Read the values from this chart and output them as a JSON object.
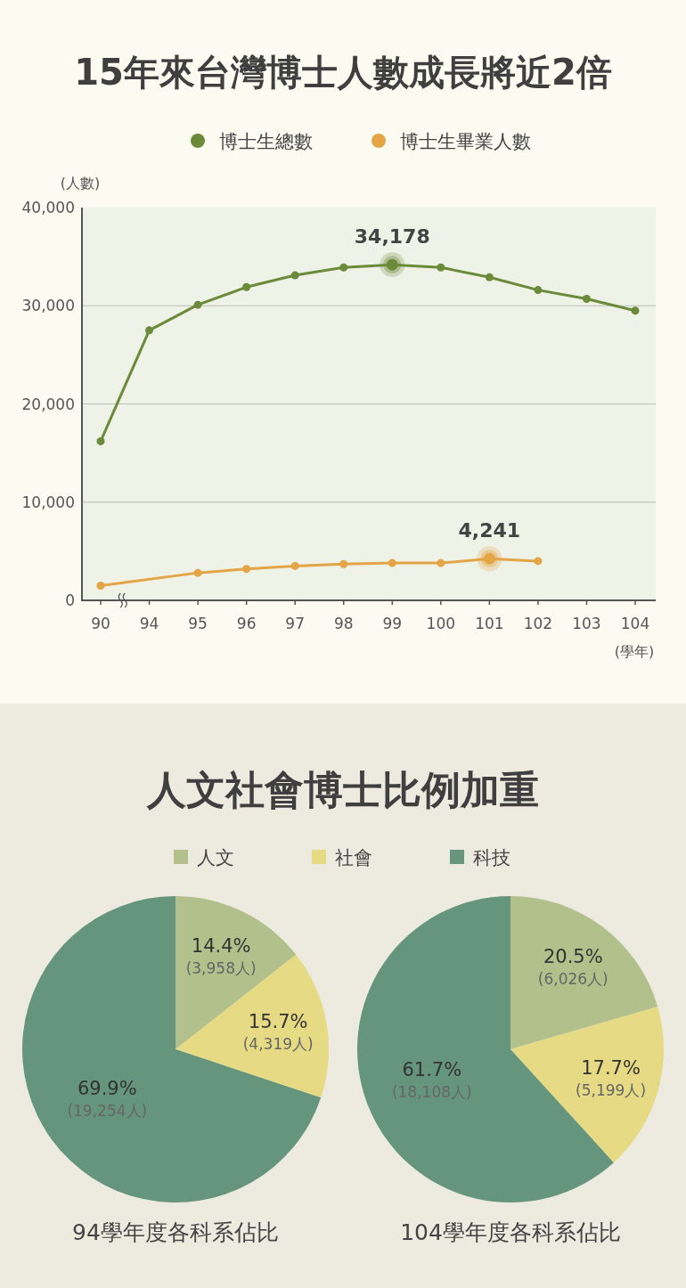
{
  "chart_data": [
    {
      "type": "line",
      "title": "15年來台灣博士人數成長將近2倍",
      "categories": [
        "90",
        "94",
        "95",
        "96",
        "97",
        "98",
        "99",
        "100",
        "101",
        "102",
        "103",
        "104"
      ],
      "series": [
        {
          "name": "博士生總數",
          "color": "#6b8b3a",
          "values": [
            16200,
            27500,
            30100,
            31900,
            33100,
            33900,
            34178,
            33900,
            32900,
            31600,
            30700,
            29500
          ]
        },
        {
          "name": "博士生畢業人數",
          "color": "#e3a545",
          "values": [
            1500,
            null,
            2800,
            3200,
            3500,
            3700,
            3800,
            3800,
            4241,
            4000,
            null,
            null
          ]
        }
      ],
      "ylabel": "(人數)",
      "xlabel": "(學年)",
      "ylim": [
        0,
        40000
      ],
      "yticks": [
        0,
        {
          "value": 10000,
          "label": "10,000"
        },
        {
          "value": 20000,
          "label": "20,000"
        },
        {
          "value": 30000,
          "label": "30,000"
        },
        {
          "value": 40000,
          "label": "40,000"
        }
      ],
      "grid": "y",
      "legend": "top",
      "marker": "circle",
      "annotations": [
        {
          "text": "34,178",
          "x": "99",
          "y": 34178
        },
        {
          "text": "4,241",
          "x": "101",
          "y": 4241
        }
      ]
    },
    {
      "type": "pie",
      "title": "人文社會博士比例加重",
      "subtitle": "94學年度各科系佔比",
      "categories": [
        "人文",
        "社會",
        "科技"
      ],
      "values": [
        14.4,
        15.7,
        69.9
      ],
      "colors": [
        "#b2c08b",
        "#e7da85",
        "#66957d"
      ],
      "value_labels": [
        "14.4%\n(3,958人)",
        "15.7%\n(4,319人)",
        "69.9%\n(19,254人)"
      ],
      "legend": "top"
    },
    {
      "type": "pie",
      "subtitle": "104學年度各科系佔比",
      "categories": [
        null,
        null,
        null
      ],
      "values": [
        20.5,
        17.7,
        61.7
      ],
      "colors": [
        "#b2c08b",
        "#e7da85",
        "#66957d"
      ],
      "value_labels": [
        "20.5%\n(6,026人)",
        "17.7%\n(5,199人)",
        "61.7%\n(18,108人)"
      ]
    }
  ]
}
